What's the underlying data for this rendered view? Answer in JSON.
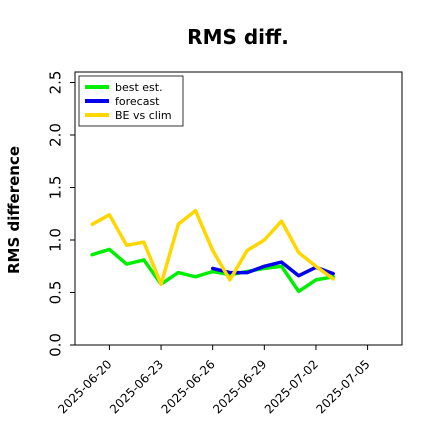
{
  "chart_data": {
    "type": "line",
    "title": "RMS diff.",
    "xlabel": "",
    "ylabel": "RMS difference",
    "ylim": [
      0,
      2.6
    ],
    "yticks": [
      0.0,
      0.5,
      1.0,
      1.5,
      2.0,
      2.5
    ],
    "ytick_labels": [
      "0.0",
      "0.5",
      "1.0",
      "1.5",
      "2.0",
      "2.5"
    ],
    "xlim": [
      "2025-06-18",
      "2025-07-07"
    ],
    "xticks": [
      "2025-06-20",
      "2025-06-23",
      "2025-06-26",
      "2025-06-29",
      "2025-07-02",
      "2025-07-05"
    ],
    "xtick_labels": [
      "2025-06-20",
      "2025-06-23",
      "2025-06-26",
      "2025-06-29",
      "2025-07-02",
      "2025-07-05"
    ],
    "highlight_tick": {
      "label": "2025-06-26",
      "color": "#228b22"
    },
    "grid": false,
    "legend_position": "top-left",
    "series": [
      {
        "name": "best est.",
        "color": "#00ee00",
        "x": [
          "2025-06-19",
          "2025-06-20",
          "2025-06-21",
          "2025-06-22",
          "2025-06-23",
          "2025-06-24",
          "2025-06-25",
          "2025-06-26",
          "2025-06-27",
          "2025-06-28",
          "2025-06-29",
          "2025-06-30",
          "2025-07-01",
          "2025-07-02",
          "2025-07-03"
        ],
        "y": [
          0.86,
          0.91,
          0.77,
          0.81,
          0.58,
          0.69,
          0.65,
          0.7,
          0.67,
          0.7,
          0.73,
          0.75,
          0.51,
          0.62,
          0.65
        ]
      },
      {
        "name": "forecast",
        "color": "#0000ee",
        "x": [
          "2025-06-26",
          "2025-06-27",
          "2025-06-28",
          "2025-06-29",
          "2025-06-30",
          "2025-07-01",
          "2025-07-02",
          "2025-07-03"
        ],
        "y": [
          0.73,
          0.69,
          0.69,
          0.75,
          0.79,
          0.66,
          0.74,
          0.68
        ]
      },
      {
        "name": "BE vs clim",
        "color": "#ffd700",
        "x": [
          "2025-06-19",
          "2025-06-20",
          "2025-06-21",
          "2025-06-22",
          "2025-06-23",
          "2025-06-24",
          "2025-06-25",
          "2025-06-26",
          "2025-06-27",
          "2025-06-28",
          "2025-06-29",
          "2025-06-30",
          "2025-07-01",
          "2025-07-02",
          "2025-07-03"
        ],
        "y": [
          1.15,
          1.24,
          0.95,
          0.98,
          0.58,
          1.15,
          1.28,
          0.9,
          0.62,
          0.9,
          1.0,
          1.18,
          0.88,
          0.75,
          0.63
        ]
      }
    ]
  }
}
